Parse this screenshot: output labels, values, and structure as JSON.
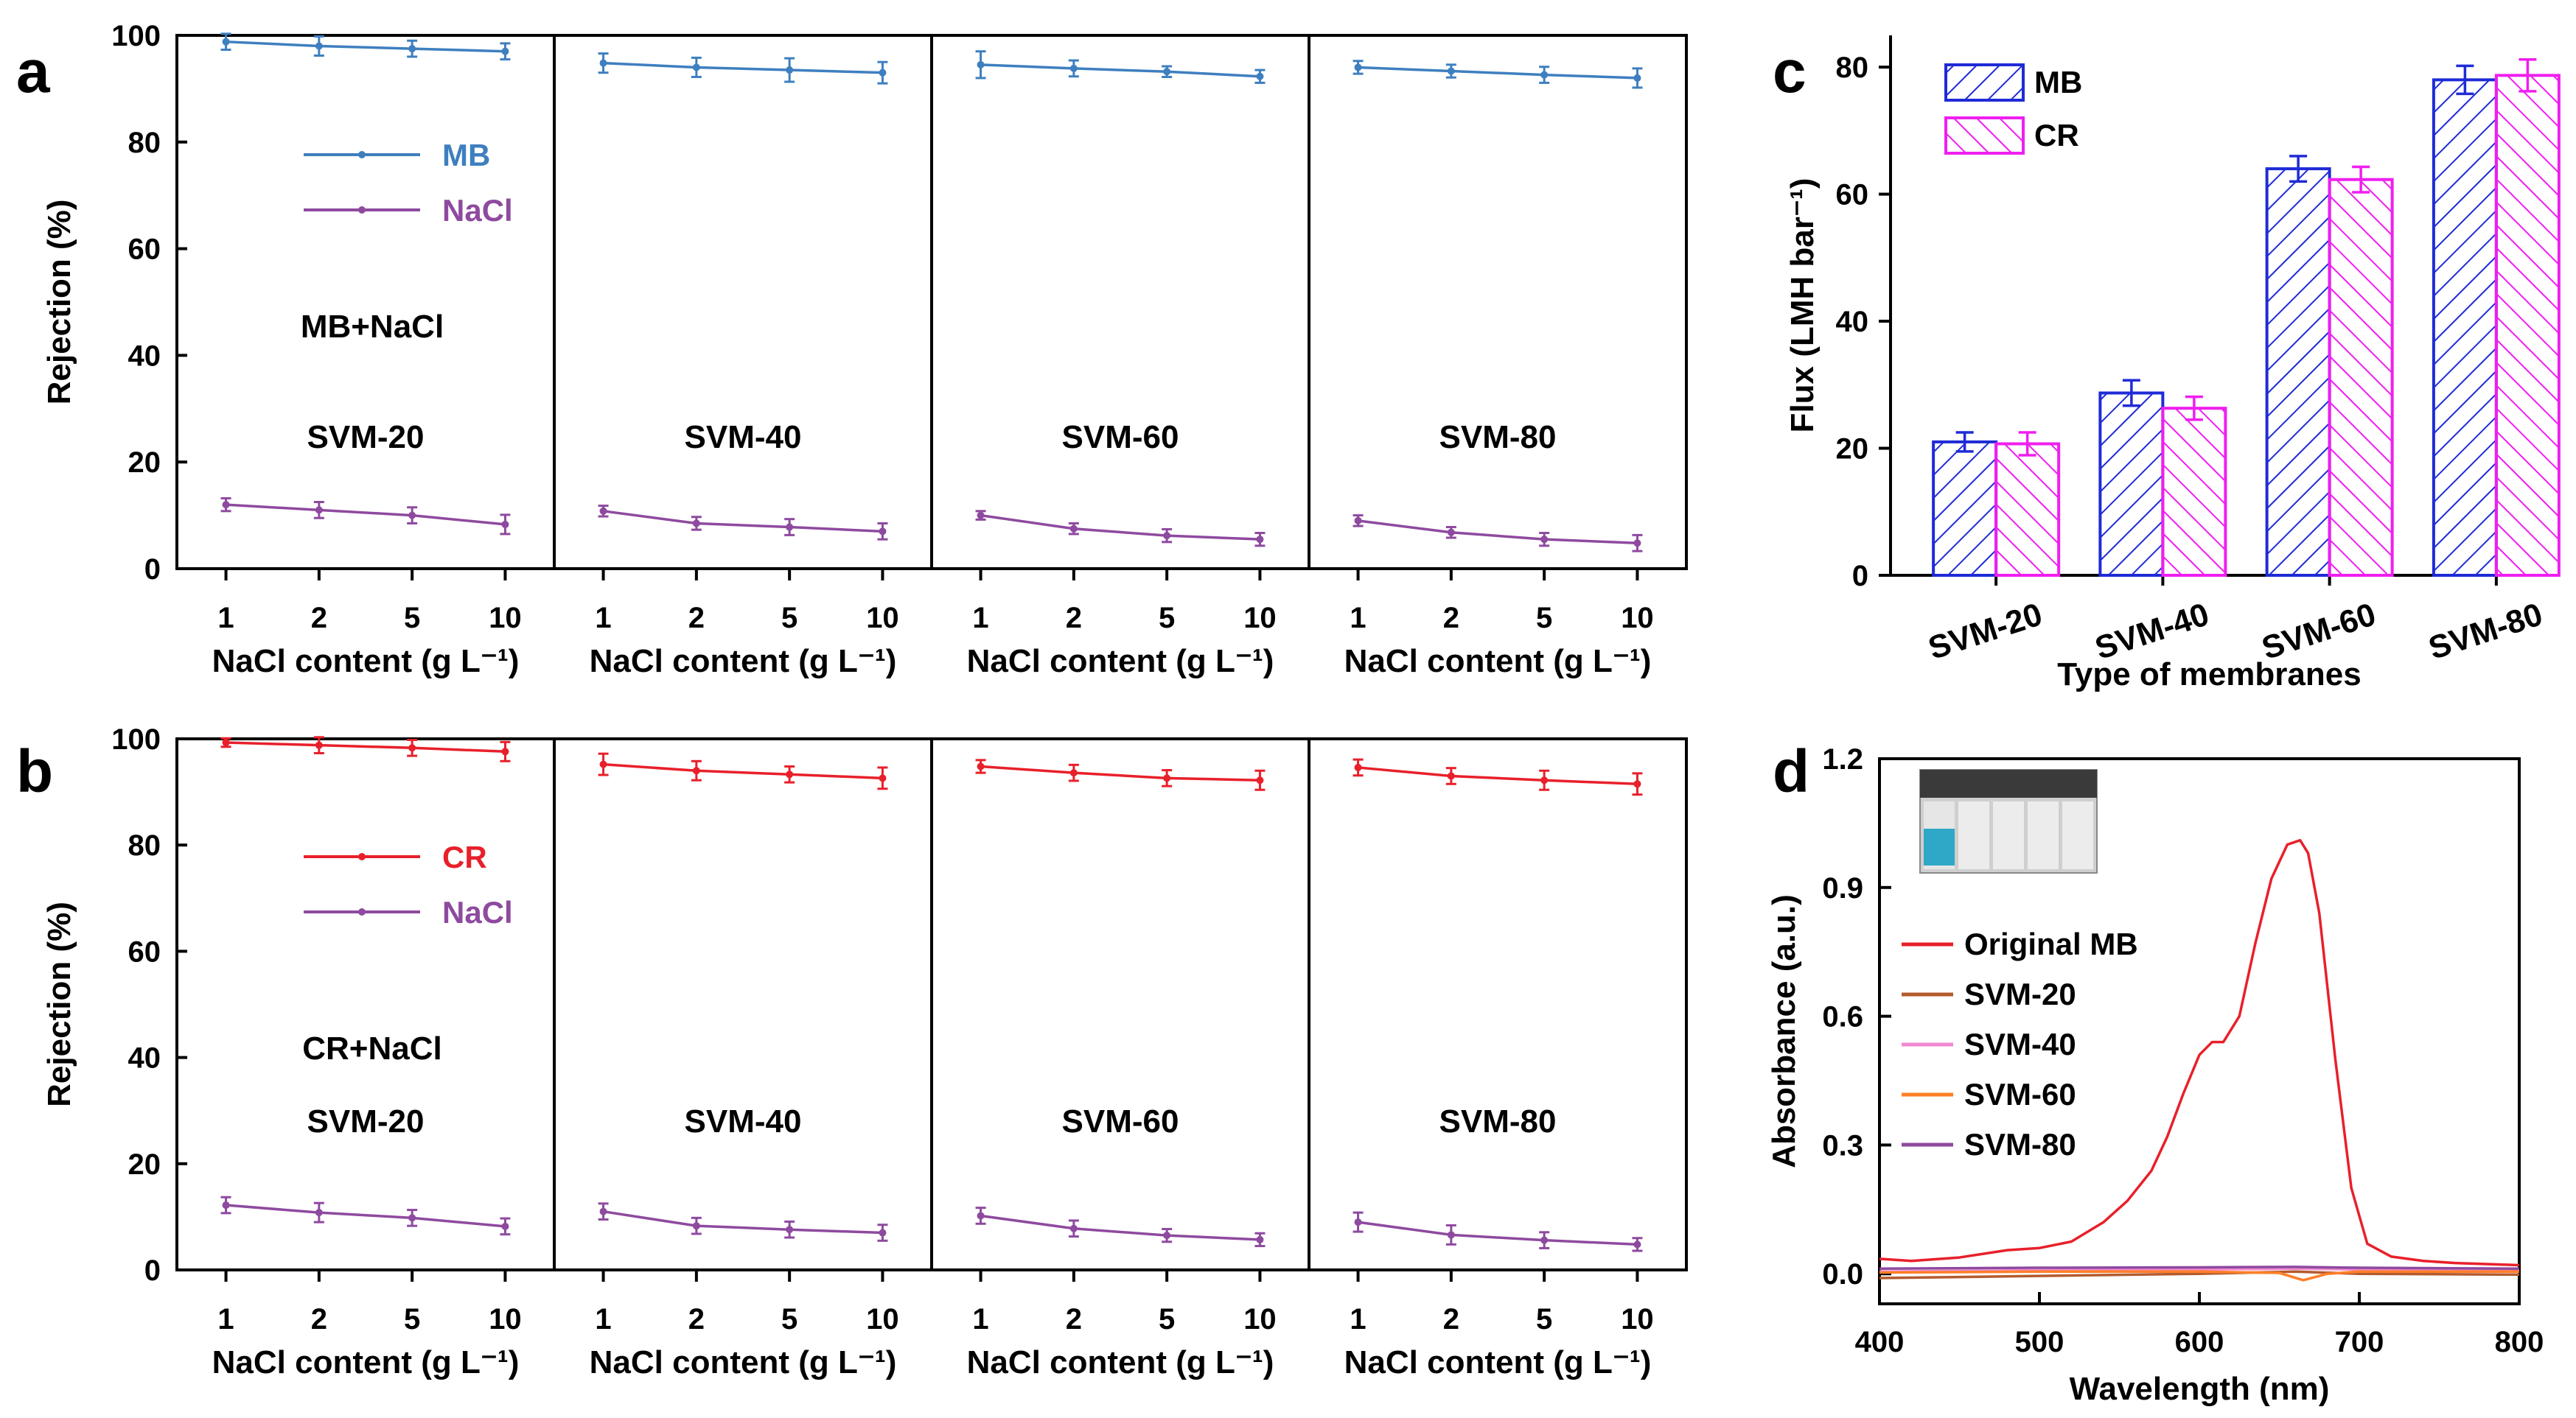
{
  "panels": {
    "a": {
      "letter": "a"
    },
    "b": {
      "letter": "b"
    },
    "c": {
      "letter": "c"
    },
    "d": {
      "letter": "d"
    }
  },
  "chart_data": [
    {
      "id": "a",
      "type": "line",
      "ylabel": "Rejection (%)",
      "xlabel": "NaCl content (g L⁻¹)",
      "categories": [
        "1",
        "2",
        "5",
        "10"
      ],
      "ylim": [
        0,
        100
      ],
      "yticks": [
        0,
        20,
        40,
        60,
        80,
        100
      ],
      "annotation": "MB+NaCl",
      "legend": [
        {
          "name": "MB",
          "color": "#3e7fbf"
        },
        {
          "name": "NaCl",
          "color": "#8e4a9f"
        }
      ],
      "subplots": [
        {
          "name": "SVM-20",
          "series": [
            {
              "name": "MB",
              "color": "#3e7fbf",
              "values": [
                98.8,
                98.0,
                97.5,
                97.0
              ],
              "errors": [
                1.5,
                1.8,
                1.5,
                1.5
              ]
            },
            {
              "name": "NaCl",
              "color": "#8e4a9f",
              "values": [
                12.0,
                11.0,
                10.0,
                8.3
              ],
              "errors": [
                1.2,
                1.5,
                1.5,
                1.8
              ]
            }
          ]
        },
        {
          "name": "SVM-40",
          "series": [
            {
              "name": "MB",
              "color": "#3e7fbf",
              "values": [
                94.8,
                94.0,
                93.5,
                93.0
              ],
              "errors": [
                1.8,
                1.8,
                2.2,
                2.0
              ]
            },
            {
              "name": "NaCl",
              "color": "#8e4a9f",
              "values": [
                10.8,
                8.5,
                7.8,
                7.0
              ],
              "errors": [
                1.0,
                1.2,
                1.5,
                1.5
              ]
            }
          ]
        },
        {
          "name": "SVM-60",
          "series": [
            {
              "name": "MB",
              "color": "#3e7fbf",
              "values": [
                94.5,
                93.8,
                93.2,
                92.3
              ],
              "errors": [
                2.5,
                1.5,
                1.0,
                1.2
              ]
            },
            {
              "name": "NaCl",
              "color": "#8e4a9f",
              "values": [
                10.0,
                7.5,
                6.2,
                5.5
              ],
              "errors": [
                0.8,
                1.0,
                1.2,
                1.2
              ]
            }
          ]
        },
        {
          "name": "SVM-80",
          "series": [
            {
              "name": "MB",
              "color": "#3e7fbf",
              "values": [
                94.0,
                93.3,
                92.6,
                92.0
              ],
              "errors": [
                1.2,
                1.2,
                1.5,
                1.8
              ]
            },
            {
              "name": "NaCl",
              "color": "#8e4a9f",
              "values": [
                9.0,
                6.8,
                5.5,
                4.8
              ],
              "errors": [
                1.0,
                1.0,
                1.2,
                1.5
              ]
            }
          ]
        }
      ]
    },
    {
      "id": "b",
      "type": "line",
      "ylabel": "Rejection (%)",
      "xlabel": "NaCl content (g L⁻¹)",
      "categories": [
        "1",
        "2",
        "5",
        "10"
      ],
      "ylim": [
        0,
        100
      ],
      "yticks": [
        0,
        20,
        40,
        60,
        80,
        100
      ],
      "annotation": "CR+NaCl",
      "legend": [
        {
          "name": "CR",
          "color": "#e8202a"
        },
        {
          "name": "NaCl",
          "color": "#8e4a9f"
        }
      ],
      "subplots": [
        {
          "name": "SVM-20",
          "series": [
            {
              "name": "CR",
              "color": "#e8202a",
              "values": [
                99.3,
                98.8,
                98.3,
                97.6
              ],
              "errors": [
                0.8,
                1.5,
                1.5,
                1.8
              ]
            },
            {
              "name": "NaCl",
              "color": "#8e4a9f",
              "values": [
                12.2,
                10.8,
                9.8,
                8.2
              ],
              "errors": [
                1.5,
                1.8,
                1.5,
                1.5
              ]
            }
          ]
        },
        {
          "name": "SVM-40",
          "series": [
            {
              "name": "CR",
              "color": "#e8202a",
              "values": [
                95.2,
                94.0,
                93.3,
                92.6
              ],
              "errors": [
                2.0,
                1.8,
                1.5,
                2.0
              ]
            },
            {
              "name": "NaCl",
              "color": "#8e4a9f",
              "values": [
                11.0,
                8.3,
                7.6,
                7.0
              ],
              "errors": [
                1.5,
                1.5,
                1.5,
                1.5
              ]
            }
          ]
        },
        {
          "name": "SVM-60",
          "series": [
            {
              "name": "CR",
              "color": "#e8202a",
              "values": [
                94.8,
                93.6,
                92.6,
                92.2
              ],
              "errors": [
                1.2,
                1.5,
                1.5,
                1.8
              ]
            },
            {
              "name": "NaCl",
              "color": "#8e4a9f",
              "values": [
                10.2,
                7.8,
                6.5,
                5.7
              ],
              "errors": [
                1.5,
                1.5,
                1.2,
                1.2
              ]
            }
          ]
        },
        {
          "name": "SVM-80",
          "series": [
            {
              "name": "CR",
              "color": "#e8202a",
              "values": [
                94.6,
                93.0,
                92.2,
                91.5
              ],
              "errors": [
                1.5,
                1.5,
                1.8,
                2.0
              ]
            },
            {
              "name": "NaCl",
              "color": "#8e4a9f",
              "values": [
                9.0,
                6.6,
                5.6,
                4.8
              ],
              "errors": [
                1.8,
                1.8,
                1.5,
                1.2
              ]
            }
          ]
        }
      ]
    },
    {
      "id": "c",
      "type": "bar",
      "title": "",
      "ylabel": "Flux (LMH bar⁻¹)",
      "xlabel": "Type of membranes",
      "categories": [
        "SVM-20",
        "SVM-40",
        "SVM-60",
        "SVM-80"
      ],
      "ylim": [
        0,
        85
      ],
      "yticks": [
        0,
        20,
        40,
        60,
        80
      ],
      "series": [
        {
          "name": "MB",
          "color": "#1f2bd6",
          "pattern": "hatch-right",
          "values": [
            21.0,
            28.7,
            64.0,
            78.0
          ],
          "errors": [
            1.5,
            2.0,
            2.0,
            2.2
          ]
        },
        {
          "name": "CR",
          "color": "#f01ef0",
          "pattern": "hatch-left",
          "values": [
            20.7,
            26.3,
            62.3,
            78.7
          ],
          "errors": [
            1.8,
            1.8,
            2.0,
            2.5
          ]
        }
      ]
    },
    {
      "id": "d",
      "type": "line",
      "ylabel": "Absorbance (a.u.)",
      "xlabel": "Wavelength (nm)",
      "xlim": [
        400,
        800
      ],
      "ylim": [
        -0.07,
        1.2
      ],
      "xticks": [
        400,
        500,
        600,
        700,
        800
      ],
      "yticks": [
        0.0,
        0.3,
        0.6,
        0.9,
        1.2
      ],
      "ytick_labels": [
        "0.0",
        "0.3",
        "0.6",
        "0.9",
        "1.2"
      ],
      "inset": "vial photo: first vial blue, remaining four clear",
      "series": [
        {
          "name": "Original MB",
          "color": "#e8202a",
          "x": [
            400,
            420,
            450,
            480,
            500,
            520,
            540,
            555,
            570,
            580,
            590,
            600,
            608,
            615,
            625,
            635,
            645,
            655,
            663,
            668,
            675,
            685,
            695,
            705,
            720,
            740,
            760,
            800
          ],
          "y": [
            0.035,
            0.03,
            0.038,
            0.055,
            0.06,
            0.075,
            0.12,
            0.17,
            0.24,
            0.32,
            0.42,
            0.51,
            0.54,
            0.54,
            0.6,
            0.77,
            0.92,
            1.0,
            1.01,
            0.98,
            0.84,
            0.5,
            0.2,
            0.07,
            0.04,
            0.03,
            0.025,
            0.02
          ]
        },
        {
          "name": "SVM-20",
          "color": "#b35b2e",
          "x": [
            400,
            500,
            600,
            660,
            700,
            800
          ],
          "y": [
            -0.01,
            -0.005,
            0.0,
            0.005,
            0.0,
            -0.002
          ]
        },
        {
          "name": "SVM-40",
          "color": "#f089d0",
          "x": [
            400,
            500,
            600,
            660,
            700,
            800
          ],
          "y": [
            0.005,
            0.008,
            0.01,
            0.012,
            0.01,
            0.008
          ]
        },
        {
          "name": "SVM-60",
          "color": "#ff7f27",
          "x": [
            400,
            500,
            600,
            650,
            665,
            680,
            700,
            800
          ],
          "y": [
            0.003,
            0.005,
            0.005,
            0.002,
            -0.015,
            0.0,
            0.005,
            0.005
          ]
        },
        {
          "name": "SVM-80",
          "color": "#8e4a9f",
          "x": [
            400,
            500,
            600,
            660,
            700,
            800
          ],
          "y": [
            0.012,
            0.014,
            0.015,
            0.016,
            0.014,
            0.012
          ]
        }
      ]
    }
  ]
}
